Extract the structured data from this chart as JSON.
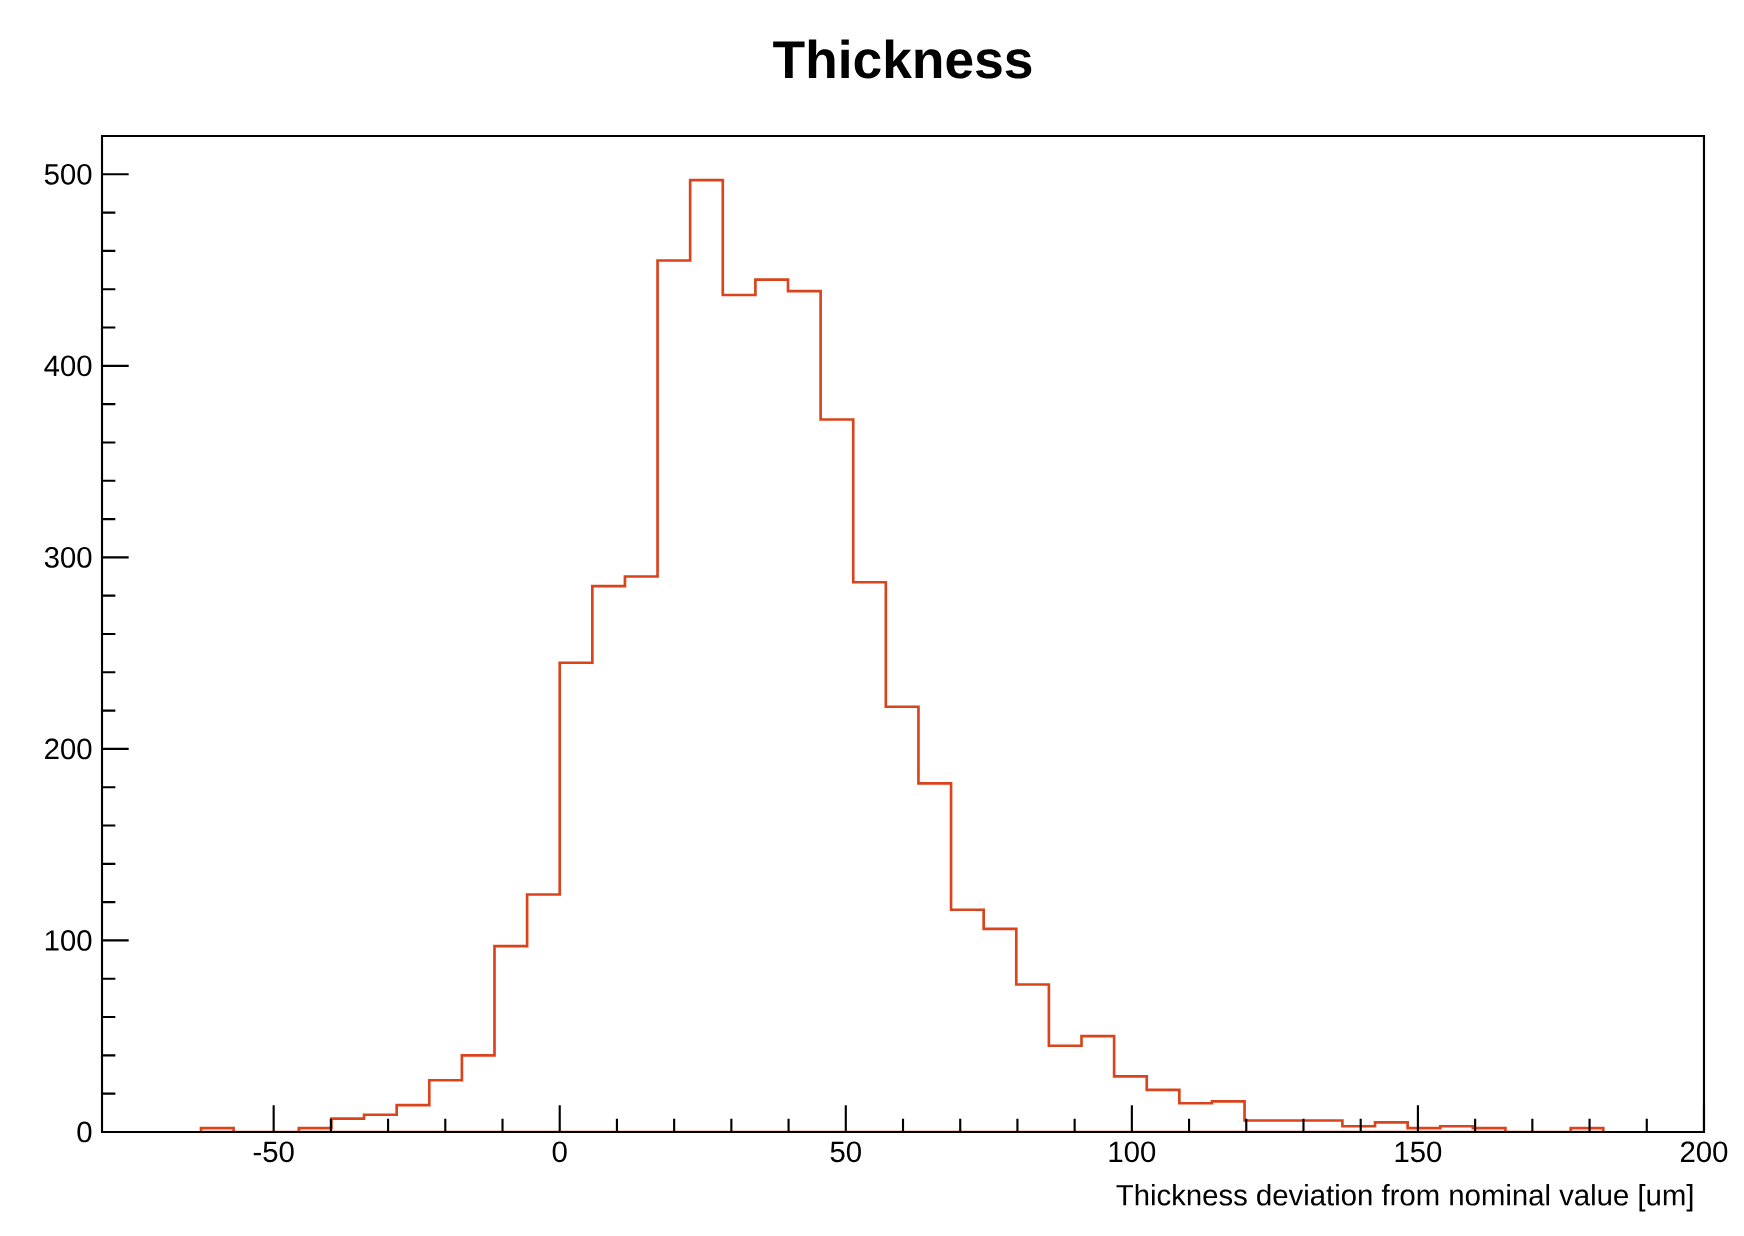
{
  "chart_data": {
    "type": "histogram",
    "title": "Thickness",
    "xlabel": "Thickness deviation from nominal value [um]",
    "bins": [
      -62.7,
      -57,
      -51.3,
      -45.6,
      -39.9,
      -34.2,
      -28.5,
      -22.8,
      -17.1,
      -11.4,
      -5.7,
      0,
      5.7,
      11.4,
      17.1,
      22.8,
      28.5,
      34.2,
      39.9,
      45.6,
      51.3,
      57,
      62.7,
      68.4,
      74.1,
      79.8,
      85.5,
      91.2,
      96.9,
      102.6,
      108.3,
      114,
      119.7,
      125.4,
      131.1,
      136.8,
      142.5,
      148.2,
      153.9,
      159.6,
      165.3,
      171,
      176.7,
      182.4
    ],
    "values": [
      2,
      0,
      0,
      2,
      7,
      9,
      14,
      27,
      40,
      97,
      124,
      245,
      285,
      290,
      455,
      497,
      437,
      445,
      439,
      372,
      287,
      222,
      182,
      116,
      106,
      77,
      45,
      50,
      29,
      22,
      15,
      16,
      6,
      6,
      6,
      3,
      5,
      2,
      3,
      2,
      0,
      0,
      2
    ],
    "color": "#d9441c",
    "xlim": [
      -80,
      200
    ],
    "xticks": [
      -50,
      0,
      50,
      100,
      150,
      200
    ],
    "ylim": [
      0,
      520
    ],
    "yticks": [
      0,
      100,
      200,
      300,
      400,
      500
    ],
    "grid": false
  }
}
